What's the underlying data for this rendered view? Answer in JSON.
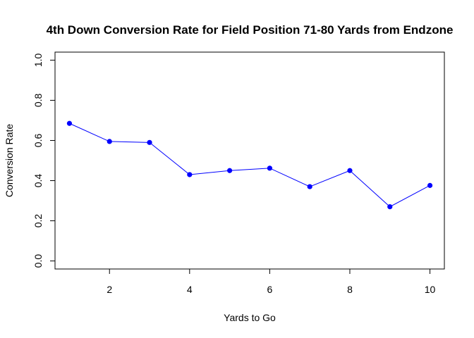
{
  "chart_data": {
    "type": "line",
    "title": "4th Down Conversion Rate for Field Position 71-80 Yards from Endzone",
    "xlabel": "Yards to Go",
    "ylabel": "Conversion Rate",
    "xlim": [
      0.64,
      10.36
    ],
    "ylim": [
      -0.04,
      1.04
    ],
    "x_ticks": [
      2,
      4,
      6,
      8,
      10
    ],
    "y_ticks": [
      0.0,
      0.2,
      0.4,
      0.6,
      0.8,
      1.0
    ],
    "x_tick_labels": [
      "2",
      "4",
      "6",
      "8",
      "10"
    ],
    "y_tick_labels": [
      "0.0",
      "0.2",
      "0.4",
      "0.6",
      "0.8",
      "1.0"
    ],
    "grid": false,
    "line_color": "#0000ff",
    "marker_color": "#0000ff",
    "series": [
      {
        "x": [
          1,
          2,
          3,
          4,
          5,
          6,
          7,
          8,
          9,
          10
        ],
        "values": [
          0.685,
          0.595,
          0.59,
          0.43,
          0.45,
          0.462,
          0.37,
          0.45,
          0.27,
          0.376
        ]
      }
    ]
  }
}
